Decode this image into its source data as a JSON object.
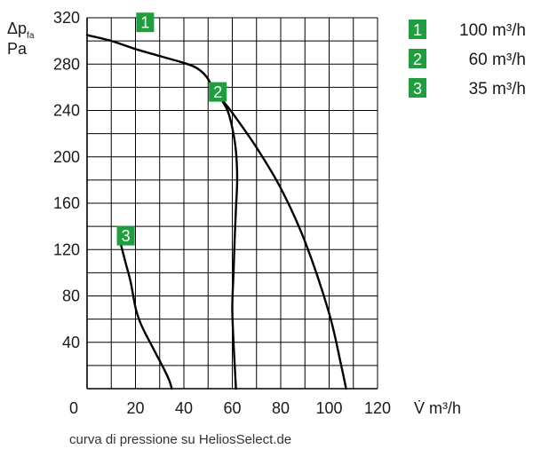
{
  "chart_data": {
    "type": "line",
    "ylabel_symbol": "Δp",
    "ylabel_subscript": "fa",
    "ylabel_unit": "Pa",
    "xlabel": "V̇ m³/h",
    "xlim": [
      0,
      120
    ],
    "ylim": [
      0,
      320
    ],
    "x_ticks": [
      0,
      20,
      40,
      60,
      80,
      100,
      120
    ],
    "y_ticks": [
      40,
      80,
      120,
      160,
      200,
      240,
      280,
      320
    ],
    "x_grid_step": 10,
    "y_grid_step": 20,
    "grid": true,
    "legend_position": "top-right",
    "footnote": "curva di pressione su HeliosSelect.de",
    "series": [
      {
        "id": "1",
        "name": "100 m³/h",
        "badge_at": [
          24,
          316
        ],
        "points": [
          [
            0,
            305
          ],
          [
            10,
            300
          ],
          [
            20,
            293
          ],
          [
            30,
            287
          ],
          [
            40,
            281
          ],
          [
            45,
            277
          ],
          [
            49,
            270
          ],
          [
            52,
            260
          ],
          [
            55,
            251
          ],
          [
            60,
            238
          ],
          [
            70,
            208
          ],
          [
            80,
            173
          ],
          [
            90,
            127
          ],
          [
            100,
            65
          ],
          [
            105,
            20
          ],
          [
            107,
            0
          ]
        ]
      },
      {
        "id": "2",
        "name": "60 m³/h",
        "badge_at": [
          54,
          256
        ],
        "points": [
          [
            55,
            251
          ],
          [
            58,
            240
          ],
          [
            60,
            225
          ],
          [
            61.5,
            205
          ],
          [
            62,
            180
          ],
          [
            61.5,
            155
          ],
          [
            61,
            130
          ],
          [
            60.5,
            100
          ],
          [
            60,
            70
          ],
          [
            60.5,
            40
          ],
          [
            61,
            20
          ],
          [
            61.5,
            0
          ]
        ]
      },
      {
        "id": "3",
        "name": "35 m³/h",
        "badge_at": [
          16,
          132
        ],
        "points": [
          [
            14,
            124
          ],
          [
            16,
            108
          ],
          [
            18,
            92
          ],
          [
            20,
            70
          ],
          [
            22,
            57
          ],
          [
            24,
            48
          ],
          [
            26,
            40
          ],
          [
            28,
            32
          ],
          [
            30,
            24
          ],
          [
            32,
            16
          ],
          [
            34,
            7
          ],
          [
            35,
            0
          ]
        ]
      }
    ]
  },
  "colors": {
    "badge": "#1e9e3e",
    "curve": "#000000",
    "grid": "#000000"
  }
}
